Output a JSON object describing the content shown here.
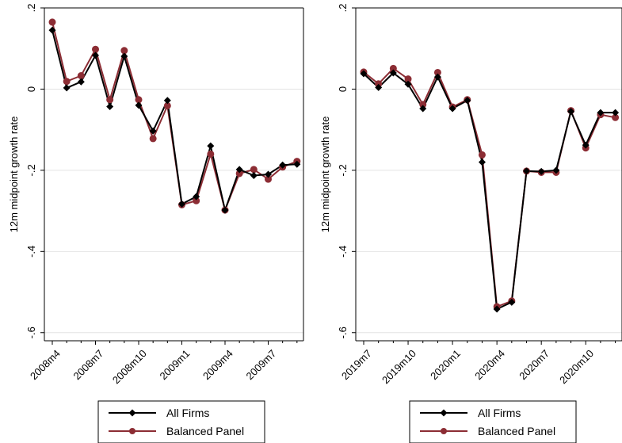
{
  "chart_data": [
    {
      "type": "line",
      "ylabel": "12m midpoint growth rate",
      "xlabel": "",
      "title": "",
      "ylim": [
        -0.62,
        0.2
      ],
      "yticks": [
        0.2,
        0,
        -0.2,
        -0.4,
        -0.6
      ],
      "ytick_labels": [
        ".2",
        "0",
        "-.2",
        "-.4",
        "-.6"
      ],
      "x": [
        "2008m4",
        "2008m5",
        "2008m6",
        "2008m7",
        "2008m8",
        "2008m9",
        "2008m10",
        "2008m11",
        "2008m12",
        "2009m1",
        "2009m2",
        "2009m3",
        "2009m4",
        "2009m5",
        "2009m6",
        "2009m7",
        "2009m8",
        "2009m9"
      ],
      "xtick_labels": [
        "2008m4",
        "2008m7",
        "2008m10",
        "2009m1",
        "2009m4",
        "2009m7"
      ],
      "grid": true,
      "legend_position": "bottom",
      "series": [
        {
          "name": "All Firms",
          "color": "#000000",
          "marker": "diamond",
          "values": [
            0.145,
            0.003,
            0.018,
            0.083,
            -0.043,
            0.081,
            -0.04,
            -0.103,
            -0.028,
            -0.283,
            -0.265,
            -0.14,
            -0.298,
            -0.198,
            -0.213,
            -0.21,
            -0.187,
            -0.185
          ]
        },
        {
          "name": "Balanced Panel",
          "color": "#8c2d34",
          "marker": "circle",
          "values": [
            0.165,
            0.019,
            0.033,
            0.098,
            -0.026,
            0.095,
            -0.026,
            -0.122,
            -0.041,
            -0.285,
            -0.275,
            -0.16,
            -0.298,
            -0.208,
            -0.198,
            -0.222,
            -0.192,
            -0.178
          ]
        }
      ]
    },
    {
      "type": "line",
      "ylabel": "12m midpoint growth rate",
      "xlabel": "",
      "title": "",
      "ylim": [
        -0.62,
        0.2
      ],
      "yticks": [
        0.2,
        0,
        -0.2,
        -0.4,
        -0.6
      ],
      "ytick_labels": [
        ".2",
        "0",
        "-.2",
        "-.4",
        "-.6"
      ],
      "x": [
        "2019m7",
        "2019m8",
        "2019m9",
        "2019m10",
        "2019m11",
        "2019m12",
        "2020m1",
        "2020m2",
        "2020m3",
        "2020m4",
        "2020m5",
        "2020m6",
        "2020m7",
        "2020m8",
        "2020m9",
        "2020m10",
        "2020m11",
        "2020m12"
      ],
      "xtick_labels": [
        "2019m7",
        "2019m10",
        "2020m1",
        "2020m4",
        "2020m7",
        "2020m10"
      ],
      "grid": true,
      "legend_position": "bottom",
      "series": [
        {
          "name": "All Firms",
          "color": "#000000",
          "marker": "diamond",
          "values": [
            0.038,
            0.004,
            0.04,
            0.012,
            -0.048,
            0.03,
            -0.048,
            -0.028,
            -0.18,
            -0.542,
            -0.525,
            -0.202,
            -0.203,
            -0.2,
            -0.055,
            -0.138,
            -0.058,
            -0.058
          ]
        },
        {
          "name": "Balanced Panel",
          "color": "#8c2d34",
          "marker": "circle",
          "values": [
            0.042,
            0.013,
            0.051,
            0.025,
            -0.038,
            0.041,
            -0.044,
            -0.026,
            -0.162,
            -0.536,
            -0.522,
            -0.202,
            -0.205,
            -0.205,
            -0.053,
            -0.145,
            -0.063,
            -0.07
          ]
        }
      ]
    }
  ]
}
